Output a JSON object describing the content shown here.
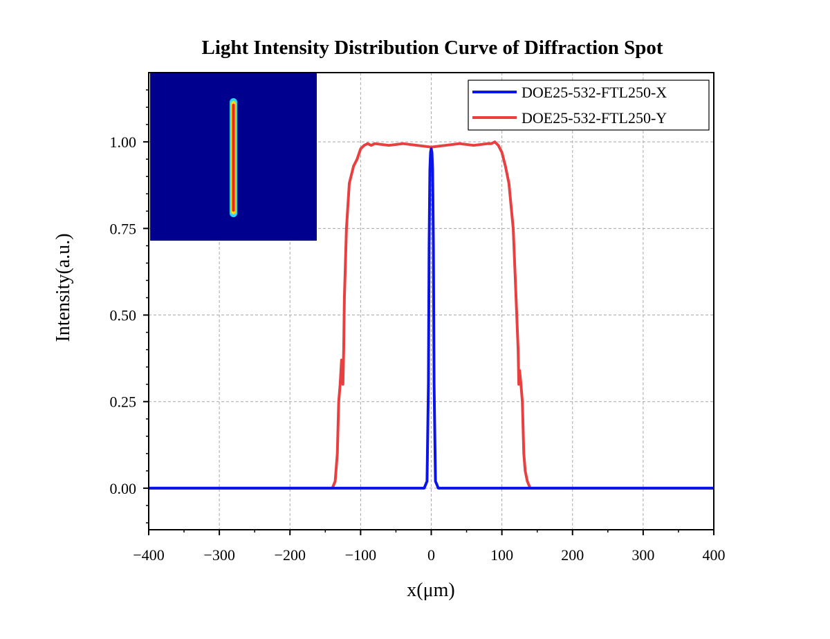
{
  "chart_data": {
    "type": "line",
    "title": "Light Intensity Distribution Curve of Diffraction Spot",
    "xlabel": "x(μm)",
    "ylabel": "Intensity(a.u.)",
    "xlim": [
      -400,
      400
    ],
    "ylim": [
      -0.12,
      1.2
    ],
    "x_ticks": [
      -400,
      -300,
      -200,
      -100,
      0,
      100,
      200,
      300,
      400
    ],
    "x_tick_labels": [
      "−400",
      "−300",
      "−200",
      "−100",
      "0",
      "100",
      "200",
      "300",
      "400"
    ],
    "y_ticks": [
      0,
      0.25,
      0.5,
      0.75,
      1.0
    ],
    "y_tick_labels": [
      "0.00",
      "0.25",
      "0.50",
      "0.75",
      "1.00"
    ],
    "grid": true,
    "legend_position": "top-right",
    "inset": "spot-intensity-image",
    "series": [
      {
        "name": "DOE25-532-FTL250-X",
        "color": "#0a14e6",
        "x": [
          -400,
          -10,
          -6,
          -4,
          -3,
          -2,
          -1,
          0,
          1,
          2,
          3,
          4,
          6,
          10,
          400
        ],
        "y": [
          0,
          0,
          0.02,
          0.3,
          0.7,
          0.92,
          0.97,
          0.98,
          0.97,
          0.92,
          0.7,
          0.3,
          0.02,
          0,
          0
        ]
      },
      {
        "name": "DOE25-532-FTL250-Y",
        "color": "#e84040",
        "x": [
          -400,
          -140,
          -136,
          -133,
          -131,
          -129,
          -127,
          -125,
          -124,
          -123,
          -120,
          -116,
          -110,
          -105,
          -100,
          -95,
          -90,
          -85,
          -80,
          -60,
          -40,
          -20,
          0,
          20,
          40,
          60,
          80,
          85,
          90,
          95,
          100,
          105,
          110,
          116,
          120,
          123,
          124,
          125,
          127,
          129,
          131,
          133,
          136,
          140,
          400
        ],
        "y": [
          0,
          0,
          0.02,
          0.1,
          0.25,
          0.3,
          0.37,
          0.3,
          0.4,
          0.55,
          0.75,
          0.88,
          0.93,
          0.95,
          0.98,
          0.99,
          0.995,
          0.99,
          0.995,
          0.99,
          0.995,
          0.99,
          0.985,
          0.99,
          0.995,
          0.99,
          0.995,
          0.995,
          1.0,
          0.99,
          0.97,
          0.93,
          0.88,
          0.75,
          0.55,
          0.4,
          0.3,
          0.34,
          0.3,
          0.25,
          0.1,
          0.05,
          0.02,
          0,
          0
        ]
      }
    ]
  }
}
